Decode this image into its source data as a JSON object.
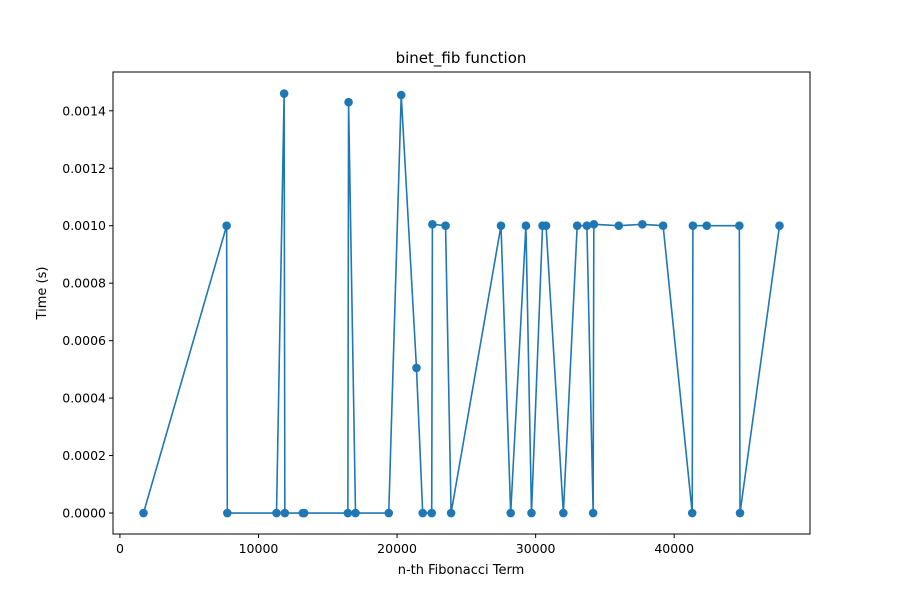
{
  "chart_data": {
    "type": "line",
    "title": "binet_fib function",
    "xlabel": "n-th Fibonacci Term",
    "ylabel": "Time (s)",
    "xlim": [
      -500,
      49800
    ],
    "ylim": [
      -7.3e-05,
      0.001535
    ],
    "x_ticks": [
      {
        "value": 0,
        "label": "0"
      },
      {
        "value": 10000,
        "label": "10000"
      },
      {
        "value": 20000,
        "label": "20000"
      },
      {
        "value": 30000,
        "label": "30000"
      },
      {
        "value": 40000,
        "label": "40000"
      }
    ],
    "y_ticks": [
      {
        "value": 0.0,
        "label": "0.0000"
      },
      {
        "value": 0.0002,
        "label": "0.0002"
      },
      {
        "value": 0.0004,
        "label": "0.0004"
      },
      {
        "value": 0.0006,
        "label": "0.0006"
      },
      {
        "value": 0.0008,
        "label": "0.0008"
      },
      {
        "value": 0.001,
        "label": "0.0010"
      },
      {
        "value": 0.0012,
        "label": "0.0012"
      },
      {
        "value": 0.0014,
        "label": "0.0014"
      }
    ],
    "grid": false,
    "line_color": "#1f77b4",
    "marker": "circle",
    "series": [
      {
        "x": [
          1700,
          7700,
          7750,
          11300,
          11850,
          11900,
          13200,
          13300,
          16450,
          16500,
          17000,
          19400,
          20300,
          21400,
          21850,
          22500,
          22550,
          23500,
          23900,
          27500,
          28200,
          29300,
          29700,
          30500,
          30750,
          32000,
          33000,
          33700,
          34150,
          34200,
          36000,
          37700,
          39200,
          41300,
          41350,
          42350,
          44700,
          44750,
          47600
        ],
        "y": [
          0.0,
          0.001,
          0.0,
          0.0,
          0.00146,
          0.0,
          0.0,
          0.0,
          0.0,
          0.00143,
          0.0,
          0.0,
          0.001455,
          0.000505,
          0.0,
          0.0,
          0.001005,
          0.001,
          0.0,
          0.001,
          0.0,
          0.001,
          0.0,
          0.001,
          0.001,
          0.0,
          0.001,
          0.001,
          0.0,
          0.001005,
          0.001,
          0.001005,
          0.001,
          0.0,
          0.001,
          0.001,
          0.001,
          0.0,
          0.001
        ]
      }
    ]
  }
}
